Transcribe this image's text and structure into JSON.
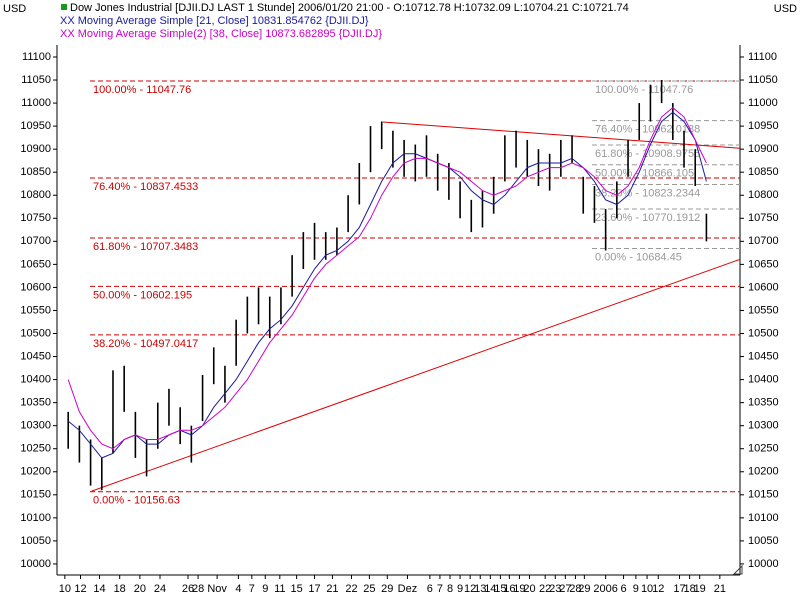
{
  "chart_data": {
    "type": "hlc-bars",
    "y_axis_label": "USD",
    "xlim": [
      -1,
      60
    ],
    "ylim": [
      9976,
      11126
    ],
    "xticks": [
      {
        "value": -0.3,
        "label": "10"
      },
      {
        "value": 1.1,
        "label": "12"
      },
      {
        "value": 2.8,
        "label": "14"
      },
      {
        "value": 4.6,
        "label": "18"
      },
      {
        "value": 6.4,
        "label": "20"
      },
      {
        "value": 8.2,
        "label": "24"
      },
      {
        "value": 10.7,
        "label": "26"
      },
      {
        "value": 11.6,
        "label": "28"
      },
      {
        "value": 13.3,
        "label": "Nov"
      },
      {
        "value": 15.2,
        "label": "4"
      },
      {
        "value": 16.4,
        "label": "7"
      },
      {
        "value": 17.6,
        "label": "9"
      },
      {
        "value": 18.9,
        "label": "11"
      },
      {
        "value": 20.4,
        "label": "15"
      },
      {
        "value": 22.0,
        "label": "17"
      },
      {
        "value": 23.6,
        "label": "21"
      },
      {
        "value": 25.3,
        "label": "22"
      },
      {
        "value": 26.9,
        "label": "25"
      },
      {
        "value": 28.5,
        "label": "29"
      },
      {
        "value": 30.3,
        "label": "Dez"
      },
      {
        "value": 32.3,
        "label": "6"
      },
      {
        "value": 33.2,
        "label": "7"
      },
      {
        "value": 34.1,
        "label": "8"
      },
      {
        "value": 35.0,
        "label": "9"
      },
      {
        "value": 35.9,
        "label": "12"
      },
      {
        "value": 36.8,
        "label": "13"
      },
      {
        "value": 37.7,
        "label": "14"
      },
      {
        "value": 38.6,
        "label": "15"
      },
      {
        "value": 39.4,
        "label": "16"
      },
      {
        "value": 40.3,
        "label": "19"
      },
      {
        "value": 41.2,
        "label": "20"
      },
      {
        "value": 42.6,
        "label": "22"
      },
      {
        "value": 43.5,
        "label": "23"
      },
      {
        "value": 44.4,
        "label": "27"
      },
      {
        "value": 45.3,
        "label": "28"
      },
      {
        "value": 46.1,
        "label": "29"
      },
      {
        "value": 48.0,
        "label": "2006"
      },
      {
        "value": 49.6,
        "label": "6"
      },
      {
        "value": 50.7,
        "label": "9"
      },
      {
        "value": 51.7,
        "label": "10"
      },
      {
        "value": 52.7,
        "label": "12"
      },
      {
        "value": 54.6,
        "label": "17"
      },
      {
        "value": 55.5,
        "label": "18"
      },
      {
        "value": 56.4,
        "label": "19"
      },
      {
        "value": 58.2,
        "label": "21"
      }
    ],
    "yticks": [
      10000,
      10050,
      10100,
      10150,
      10200,
      10250,
      10300,
      10350,
      10400,
      10450,
      10500,
      10550,
      10600,
      10650,
      10700,
      10750,
      10800,
      10850,
      10900,
      10950,
      11000,
      11050,
      11100
    ],
    "series": [
      {
        "name": "Dow Jones Industrial [DJII.DJ LAST 1 Stunde] 2006/01/20 21:00 - O:10712.78 H:10732.09 L:10704.21 C:10721.74",
        "color": "#000000",
        "high": [
          10330,
          10300,
          10270,
          10230,
          10420,
          10430,
          10330,
          10270,
          10350,
          10380,
          10340,
          10300,
          10410,
          10470,
          10430,
          10530,
          10580,
          10600,
          10580,
          10600,
          10670,
          10720,
          10740,
          10720,
          10730,
          10800,
          10870,
          10950,
          10960,
          10940,
          10920,
          10910,
          10930,
          10890,
          10870,
          10830,
          10790,
          10810,
          10840,
          10930,
          10940,
          10920,
          10900,
          10890,
          10920,
          10930,
          10840,
          10820,
          10770,
          10830,
          10920,
          11000,
          11040,
          11050,
          11000,
          10940,
          10900,
          10760
        ],
        "low": [
          10250,
          10220,
          10170,
          10160,
          10240,
          10330,
          10230,
          10190,
          10250,
          10300,
          10260,
          10220,
          10310,
          10390,
          10350,
          10430,
          10500,
          10520,
          10490,
          10520,
          10580,
          10640,
          10660,
          10660,
          10670,
          10720,
          10780,
          10850,
          10900,
          10860,
          10840,
          10830,
          10840,
          10810,
          10790,
          10750,
          10720,
          10730,
          10760,
          10830,
          10860,
          10840,
          10820,
          10810,
          10840,
          10870,
          10760,
          10740,
          10680,
          10750,
          10840,
          10920,
          10960,
          11000,
          10920,
          10860,
          10820,
          10700
        ]
      },
      {
        "name": "XX Moving Average Simple [21, Close] 10831.854762 {DJII.DJ}",
        "color": "#1a1a9c",
        "values": [
          10310,
          10290,
          10260,
          10230,
          10240,
          10270,
          10280,
          10260,
          10260,
          10280,
          10290,
          10280,
          10300,
          10340,
          10370,
          10400,
          10440,
          10480,
          10510,
          10530,
          10560,
          10600,
          10640,
          10670,
          10680,
          10700,
          10730,
          10780,
          10830,
          10870,
          10890,
          10890,
          10880,
          10870,
          10860,
          10840,
          10810,
          10790,
          10780,
          10800,
          10830,
          10860,
          10870,
          10870,
          10870,
          10880,
          10860,
          10830,
          10790,
          10780,
          10800,
          10850,
          10910,
          10960,
          10980,
          10960,
          10920,
          10830
        ]
      },
      {
        "name": "XX Moving Average Simple(2) [38, Close] 10873.682895 {DJII.DJ}",
        "color": "#cc00cc",
        "values": [
          10400,
          10330,
          10290,
          10260,
          10250,
          10270,
          10280,
          10270,
          10270,
          10280,
          10290,
          10290,
          10300,
          10320,
          10340,
          10370,
          10400,
          10440,
          10480,
          10510,
          10540,
          10580,
          10620,
          10650,
          10670,
          10690,
          10710,
          10750,
          10800,
          10840,
          10870,
          10880,
          10880,
          10870,
          10860,
          10850,
          10830,
          10810,
          10800,
          10810,
          10820,
          10840,
          10850,
          10860,
          10860,
          10870,
          10860,
          10840,
          10810,
          10800,
          10820,
          10860,
          10920,
          10970,
          10990,
          10970,
          10920,
          10870
        ]
      }
    ],
    "fib_retracements": [
      {
        "color": "#cc0000",
        "levels": [
          {
            "label": "100.00% - 11047.76",
            "value": 11047.76
          },
          {
            "label": "76.40% - 10837.4533",
            "value": 10837.4533
          },
          {
            "label": "61.80% - 10707.3483",
            "value": 10707.3483
          },
          {
            "label": "50.00% - 10602.195",
            "value": 10602.195
          },
          {
            "label": "38.20% - 10497.0417",
            "value": 10497.0417
          },
          {
            "label": "0.00% - 10156.63",
            "value": 10156.63
          }
        ]
      },
      {
        "color": "#999999",
        "levels": [
          {
            "label": "100.00% - 11047.76",
            "value": 11047.76
          },
          {
            "label": "76.40% - 10962.0188",
            "value": 10962.0188
          },
          {
            "label": "61.80% - 10908.9756",
            "value": 10908.9756
          },
          {
            "label": "50.00% - 10866.105",
            "value": 10866.105
          },
          {
            "label": "38.20% - 10823.2344",
            "value": 10823.2344
          },
          {
            "label": "23.60% - 10770.1912",
            "value": 10770.1912
          },
          {
            "label": "0.00% - 10684.45",
            "value": 10684.45
          }
        ]
      }
    ],
    "trend_lines": [
      {
        "color": "#dd0000",
        "x": [
          28.1,
          60
        ],
        "y": [
          10959,
          10902
        ]
      },
      {
        "color": "#dd0000",
        "x": [
          2.1,
          60
        ],
        "y": [
          10158,
          10661
        ]
      }
    ]
  }
}
